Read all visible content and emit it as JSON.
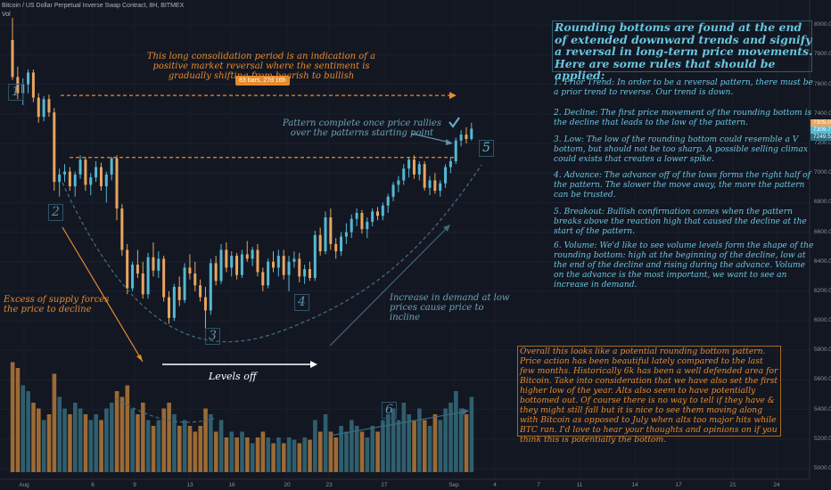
{
  "header": {
    "title": "Bitcoin / US Dollar Perpetual Inverse Swap Contract, 8H, BITMEX",
    "vol_label": "Vol"
  },
  "annotations": {
    "consolidation": "This long consolidation period is an indication of a positive market reversal where the sentiment is gradually shifting from bearish to bullish",
    "bars_badge": "83 bars, 27d 16h",
    "pattern_complete": "Pattern complete once price rallies over the patterns starting point",
    "excess_supply": "Excess of supply forces the price to decline",
    "levels_off": "Levels off",
    "increase_demand": "Increase in demand at low prices cause price to incline",
    "numbers": [
      "1",
      "2",
      "3",
      "4",
      "5",
      "6"
    ]
  },
  "rules": {
    "title": "Rounding bottoms are found at the end of extended downward trends and signify a reversal in long-term price movements. Here are some rules that should be applied:",
    "items": [
      "1. Prior Trend: In order to be a reversal pattern, there must be a prior trend to reverse. Our trend is down.",
      "2. Decline: The first price movement of the rounding bottom is the decline that leads to the low of the pattern.",
      "3. Low: The low of the rounding bottom could resemble a V bottom, but should not be too sharp. A possible selling climax could exists that creates a lower spike.",
      "4. Advance: The advance off of the lows forms the right half of the pattern. The slower the move away, the more the pattern can be trusted.",
      "5. Breakout: Bullish confirmation comes when the pattern breaks above the reaction high that caused the decline at the start of the pattern.",
      "6. Volume: We'd like to see volume levels form the shape of the rounding bottom: high at the beginning of the decline, low at the end of the decline and rising during the advance. Volume on the advance is the most important, we want to see an increase in demand."
    ]
  },
  "overall": "Overall this looks like a potential rounding bottom pattern. Price action has been beautiful lately compared to the last few months. Historically 6k has been a well defended area for Bitcoin. Take into consideration that we have also set the first higher low of the year. Alts also seem to have potentially bottomed out. Of course there is no way to tell if they have & they might still fall but it is nice to see them moving along with Bitcoin as opposed to July when alts too major hits while BTC ran. I'd love to hear your thoughts and opinions on if you think this is potentially the bottom.",
  "colors": {
    "background": "#131722",
    "up_candle": "#53b9d4",
    "down_candle": "#e8a55f",
    "annotation_orange": "#e78a2d",
    "annotation_blue": "#5b8fa3"
  },
  "chart_data": {
    "type": "candlestick",
    "y_axis": {
      "ticks": [
        "8000.0",
        "7800.0",
        "7600.0",
        "7400.0",
        "7200.0",
        "7000.0",
        "6800.0",
        "6600.0",
        "6400.0",
        "6200.0",
        "6000.0",
        "5800.0",
        "5600.0",
        "5400.0",
        "5200.0",
        "5000.0"
      ],
      "price_tags": [
        "7305.0",
        "7309.7",
        "7249.5"
      ]
    },
    "x_axis": {
      "ticks": [
        "Aug",
        "6",
        "9",
        "13",
        "16",
        "20",
        "23",
        "27",
        "Sep",
        "4",
        "7",
        "11",
        "14",
        "17",
        "21",
        "24"
      ]
    },
    "reference_levels": [
      7525,
      7105
    ],
    "candles": [
      [
        7900,
        8050,
        7630,
        7650
      ],
      [
        7650,
        7720,
        7500,
        7540
      ],
      [
        7540,
        7640,
        7460,
        7600
      ],
      [
        7600,
        7700,
        7540,
        7680
      ],
      [
        7680,
        7700,
        7480,
        7510
      ],
      [
        7510,
        7540,
        7340,
        7380
      ],
      [
        7380,
        7520,
        7350,
        7500
      ],
      [
        7500,
        7530,
        7380,
        7410
      ],
      [
        7410,
        7440,
        6880,
        6940
      ],
      [
        6940,
        7030,
        6840,
        6990
      ],
      [
        6990,
        7060,
        6940,
        7010
      ],
      [
        7010,
        7040,
        6880,
        6910
      ],
      [
        6910,
        7010,
        6840,
        6990
      ],
      [
        6990,
        7120,
        6960,
        7090
      ],
      [
        7090,
        7110,
        6880,
        6920
      ],
      [
        6920,
        7000,
        6850,
        6970
      ],
      [
        6970,
        7080,
        6940,
        7040
      ],
      [
        7040,
        7070,
        6880,
        6910
      ],
      [
        6910,
        7010,
        6800,
        6990
      ],
      [
        6990,
        7110,
        6950,
        7100
      ],
      [
        7100,
        7120,
        6680,
        6760
      ],
      [
        6760,
        6790,
        6440,
        6480
      ],
      [
        6480,
        6520,
        6180,
        6220
      ],
      [
        6220,
        6400,
        6200,
        6380
      ],
      [
        6380,
        6480,
        6290,
        6320
      ],
      [
        6320,
        6400,
        6150,
        6180
      ],
      [
        6180,
        6460,
        6150,
        6430
      ],
      [
        6430,
        6530,
        6300,
        6340
      ],
      [
        6340,
        6470,
        6290,
        6420
      ],
      [
        6420,
        6440,
        6130,
        6160
      ],
      [
        6160,
        6200,
        5980,
        6020
      ],
      [
        6020,
        6250,
        6000,
        6230
      ],
      [
        6230,
        6300,
        6100,
        6140
      ],
      [
        6140,
        6390,
        6120,
        6360
      ],
      [
        6360,
        6450,
        6280,
        6320
      ],
      [
        6320,
        6400,
        6200,
        6240
      ],
      [
        6240,
        6280,
        6130,
        6160
      ],
      [
        6160,
        6230,
        5920,
        6070
      ],
      [
        6070,
        6420,
        6040,
        6390
      ],
      [
        6390,
        6440,
        6240,
        6270
      ],
      [
        6270,
        6520,
        6250,
        6480
      ],
      [
        6480,
        6530,
        6330,
        6360
      ],
      [
        6360,
        6470,
        6300,
        6440
      ],
      [
        6440,
        6460,
        6280,
        6310
      ],
      [
        6310,
        6480,
        6290,
        6450
      ],
      [
        6450,
        6540,
        6400,
        6420
      ],
      [
        6420,
        6500,
        6370,
        6480
      ],
      [
        6480,
        6520,
        6300,
        6330
      ],
      [
        6330,
        6360,
        6200,
        6240
      ],
      [
        6240,
        6420,
        6220,
        6400
      ],
      [
        6400,
        6470,
        6330,
        6360
      ],
      [
        6360,
        6480,
        6300,
        6440
      ],
      [
        6440,
        6480,
        6280,
        6310
      ],
      [
        6310,
        6440,
        6200,
        6400
      ],
      [
        6400,
        6470,
        6360,
        6420
      ],
      [
        6420,
        6460,
        6260,
        6300
      ],
      [
        6300,
        6380,
        6250,
        6350
      ],
      [
        6350,
        6400,
        6270,
        6290
      ],
      [
        6290,
        6610,
        6270,
        6580
      ],
      [
        6580,
        6630,
        6440,
        6470
      ],
      [
        6470,
        6740,
        6450,
        6700
      ],
      [
        6700,
        6760,
        6480,
        6520
      ],
      [
        6520,
        6560,
        6420,
        6470
      ],
      [
        6470,
        6600,
        6440,
        6570
      ],
      [
        6570,
        6660,
        6520,
        6600
      ],
      [
        6600,
        6720,
        6560,
        6690
      ],
      [
        6690,
        6760,
        6640,
        6730
      ],
      [
        6730,
        6750,
        6590,
        6620
      ],
      [
        6620,
        6700,
        6560,
        6670
      ],
      [
        6670,
        6760,
        6640,
        6740
      ],
      [
        6740,
        6770,
        6680,
        6710
      ],
      [
        6710,
        6800,
        6680,
        6780
      ],
      [
        6780,
        6860,
        6730,
        6840
      ],
      [
        6840,
        6940,
        6810,
        6920
      ],
      [
        6920,
        6980,
        6870,
        6950
      ],
      [
        6950,
        7060,
        6920,
        7030
      ],
      [
        7030,
        7110,
        6970,
        7090
      ],
      [
        7090,
        7120,
        6960,
        6990
      ],
      [
        6990,
        7080,
        6950,
        7060
      ],
      [
        7060,
        7080,
        6880,
        6900
      ],
      [
        6900,
        6980,
        6850,
        6950
      ],
      [
        6950,
        7000,
        6860,
        6880
      ],
      [
        6880,
        6950,
        6840,
        6930
      ],
      [
        6930,
        7060,
        6900,
        7040
      ],
      [
        7040,
        7110,
        7000,
        7080
      ],
      [
        7080,
        7240,
        7060,
        7220
      ],
      [
        7220,
        7290,
        7180,
        7260
      ],
      [
        7260,
        7310,
        7200,
        7230
      ],
      [
        7230,
        7340,
        7220,
        7300
      ]
    ],
    "volume": [
      0.95,
      0.9,
      0.75,
      0.7,
      0.6,
      0.55,
      0.45,
      0.5,
      0.85,
      0.65,
      0.55,
      0.5,
      0.6,
      0.55,
      0.5,
      0.45,
      0.5,
      0.45,
      0.55,
      0.6,
      0.7,
      0.65,
      0.75,
      0.55,
      0.5,
      0.6,
      0.45,
      0.4,
      0.45,
      0.55,
      0.6,
      0.5,
      0.4,
      0.45,
      0.4,
      0.35,
      0.4,
      0.55,
      0.5,
      0.35,
      0.45,
      0.3,
      0.35,
      0.3,
      0.35,
      0.3,
      0.25,
      0.3,
      0.35,
      0.3,
      0.25,
      0.3,
      0.25,
      0.3,
      0.28,
      0.25,
      0.3,
      0.28,
      0.45,
      0.35,
      0.5,
      0.35,
      0.3,
      0.4,
      0.35,
      0.45,
      0.4,
      0.35,
      0.3,
      0.4,
      0.35,
      0.45,
      0.5,
      0.55,
      0.45,
      0.6,
      0.5,
      0.45,
      0.55,
      0.45,
      0.4,
      0.5,
      0.45,
      0.55,
      0.6,
      0.7,
      0.55,
      0.5,
      0.65
    ]
  }
}
